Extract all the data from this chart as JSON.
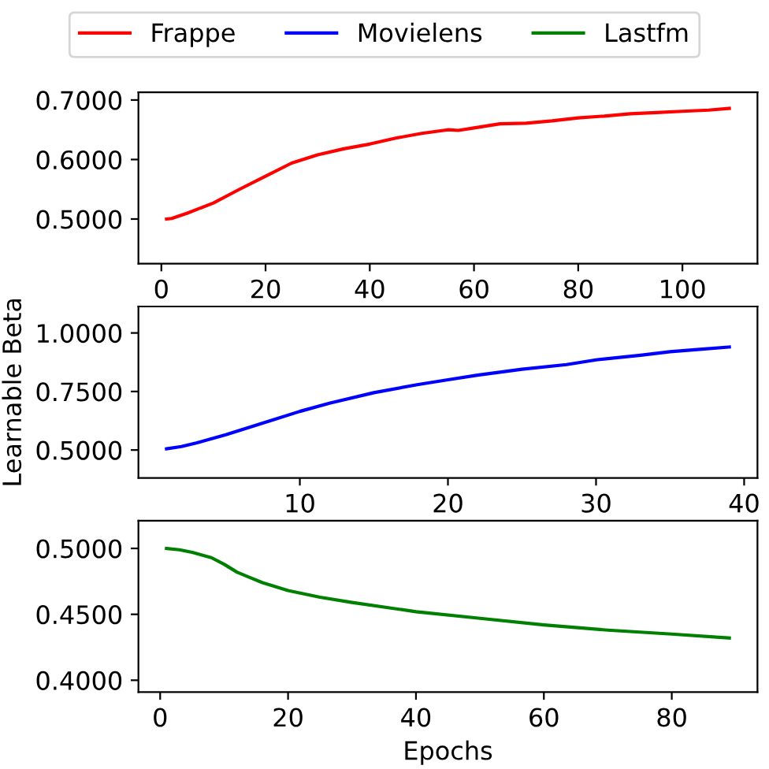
{
  "chart_data": [
    {
      "type": "line",
      "legend": "top",
      "x": [
        1,
        2,
        5,
        10,
        15,
        20,
        25,
        30,
        35,
        40,
        45,
        50,
        55,
        57,
        60,
        65,
        70,
        75,
        80,
        85,
        90,
        95,
        100,
        105,
        109
      ],
      "series": [
        {
          "name": "Frappe",
          "color": "#ff0000",
          "values": [
            0.5,
            0.501,
            0.51,
            0.527,
            0.55,
            0.572,
            0.594,
            0.608,
            0.618,
            0.626,
            0.636,
            0.644,
            0.65,
            0.649,
            0.653,
            0.66,
            0.661,
            0.665,
            0.67,
            0.673,
            0.677,
            0.679,
            0.681,
            0.683,
            0.686
          ]
        }
      ],
      "xlim": [
        -4.4,
        114.4
      ],
      "xticks": [
        0,
        20,
        40,
        60,
        80,
        100
      ],
      "ylim": [
        0.425,
        0.713
      ],
      "yticks": [
        {
          "value": 0.5,
          "label": "0.5000"
        },
        {
          "value": 0.6,
          "label": "0.6000"
        },
        {
          "value": 0.7,
          "label": "0.7000"
        }
      ]
    },
    {
      "type": "line",
      "ylabel": "Learnable Beta",
      "x": [
        1,
        2,
        3,
        5,
        8,
        10,
        12,
        15,
        18,
        20,
        22,
        25,
        28,
        30,
        33,
        35,
        37,
        39
      ],
      "series": [
        {
          "name": "Movielens",
          "color": "#0000ff",
          "values": [
            0.505,
            0.515,
            0.53,
            0.565,
            0.625,
            0.665,
            0.7,
            0.745,
            0.78,
            0.8,
            0.82,
            0.845,
            0.865,
            0.885,
            0.905,
            0.92,
            0.93,
            0.94
          ]
        }
      ],
      "xlim": [
        -0.9,
        40.9
      ],
      "xticks": [
        10,
        20,
        30,
        40
      ],
      "ylim": [
        0.381,
        1.113
      ],
      "yticks": [
        {
          "value": 0.5,
          "label": "0.5000"
        },
        {
          "value": 0.75,
          "label": "0.7500"
        },
        {
          "value": 1.0,
          "label": "1.0000"
        }
      ]
    },
    {
      "type": "line",
      "xlabel": "Epochs",
      "x": [
        1,
        3,
        5,
        8,
        10,
        12,
        14,
        16,
        18,
        20,
        25,
        30,
        40,
        50,
        60,
        70,
        80,
        89
      ],
      "series": [
        {
          "name": "Lastfm",
          "color": "#008000",
          "values": [
            0.5,
            0.499,
            0.497,
            0.493,
            0.488,
            0.482,
            0.478,
            0.474,
            0.471,
            0.468,
            0.463,
            0.459,
            0.452,
            0.447,
            0.442,
            0.438,
            0.435,
            0.432
          ]
        }
      ],
      "xlim": [
        -3.4,
        93.4
      ],
      "xticks": [
        0,
        20,
        40,
        60,
        80
      ],
      "ylim": [
        0.391,
        0.521
      ],
      "yticks": [
        {
          "value": 0.4,
          "label": "0.4000"
        },
        {
          "value": 0.45,
          "label": "0.4500"
        },
        {
          "value": 0.5,
          "label": "0.5000"
        }
      ]
    }
  ]
}
